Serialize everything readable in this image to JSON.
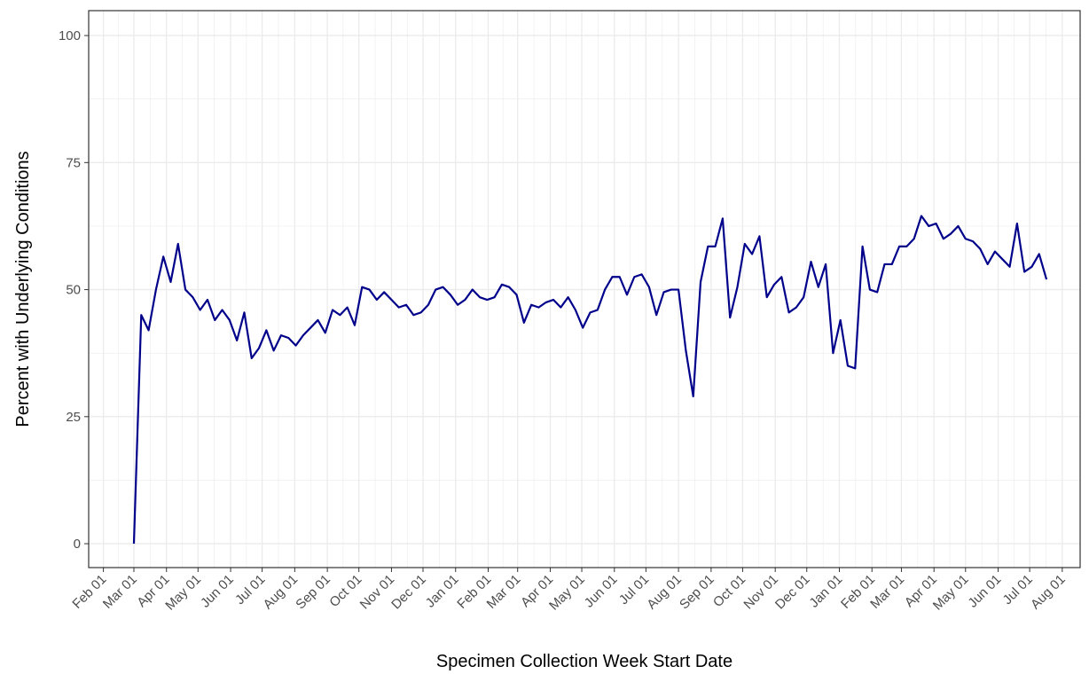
{
  "chart_data": {
    "type": "line",
    "x_label": "Specimen Collection Week Start Date",
    "y_label": "Percent with Underlying Conditions",
    "xlim": [
      -14,
      929
    ],
    "xticks": [
      {
        "value": 0,
        "label": "Feb 01"
      },
      {
        "value": 29,
        "label": "Mar 01"
      },
      {
        "value": 60,
        "label": "Apr 01"
      },
      {
        "value": 90,
        "label": "May 01"
      },
      {
        "value": 121,
        "label": "Jun 01"
      },
      {
        "value": 151,
        "label": "Jul 01"
      },
      {
        "value": 182,
        "label": "Aug 01"
      },
      {
        "value": 213,
        "label": "Sep 01"
      },
      {
        "value": 243,
        "label": "Oct 01"
      },
      {
        "value": 274,
        "label": "Nov 01"
      },
      {
        "value": 304,
        "label": "Dec 01"
      },
      {
        "value": 335,
        "label": "Jan 01"
      },
      {
        "value": 366,
        "label": "Feb 01"
      },
      {
        "value": 394,
        "label": "Mar 01"
      },
      {
        "value": 425,
        "label": "Apr 01"
      },
      {
        "value": 455,
        "label": "May 01"
      },
      {
        "value": 486,
        "label": "Jun 01"
      },
      {
        "value": 516,
        "label": "Jul 01"
      },
      {
        "value": 547,
        "label": "Aug 01"
      },
      {
        "value": 578,
        "label": "Sep 01"
      },
      {
        "value": 608,
        "label": "Oct 01"
      },
      {
        "value": 639,
        "label": "Nov 01"
      },
      {
        "value": 669,
        "label": "Dec 01"
      },
      {
        "value": 700,
        "label": "Jan 01"
      },
      {
        "value": 731,
        "label": "Feb 01"
      },
      {
        "value": 759,
        "label": "Mar 01"
      },
      {
        "value": 790,
        "label": "Apr 01"
      },
      {
        "value": 820,
        "label": "May 01"
      },
      {
        "value": 851,
        "label": "Jun 01"
      },
      {
        "value": 881,
        "label": "Jul 01"
      },
      {
        "value": 912,
        "label": "Aug 01"
      }
    ],
    "ylim": [
      -4.7,
      104.9
    ],
    "yticks": [
      0,
      25,
      50,
      75,
      100
    ],
    "grid": true,
    "x": [
      29,
      36,
      43,
      50,
      57,
      64,
      71,
      78,
      85,
      92,
      99,
      106,
      113,
      120,
      127,
      134,
      141,
      148,
      155,
      162,
      169,
      176,
      183,
      190,
      197,
      204,
      211,
      218,
      225,
      232,
      239,
      246,
      253,
      260,
      267,
      274,
      281,
      288,
      295,
      302,
      309,
      316,
      323,
      330,
      337,
      344,
      351,
      358,
      365,
      372,
      379,
      386,
      393,
      400,
      407,
      414,
      421,
      428,
      435,
      442,
      449,
      456,
      463,
      470,
      477,
      484,
      491,
      498,
      505,
      512,
      519,
      526,
      533,
      540,
      547,
      554,
      561,
      568,
      575,
      582,
      589,
      596,
      603,
      610,
      617,
      624,
      631,
      638,
      645,
      652,
      659,
      666,
      673,
      680,
      687,
      694,
      701,
      708,
      715,
      722,
      729,
      736,
      743,
      750,
      757,
      764,
      771,
      778,
      785,
      792,
      799,
      806,
      813,
      820,
      827,
      834,
      841,
      848,
      855,
      862,
      869,
      876,
      883,
      890,
      897
    ],
    "series": [
      {
        "color": "#00008b",
        "values": [
          0,
          45,
          42,
          50,
          56.5,
          51.5,
          59,
          50,
          48.5,
          46,
          48,
          44,
          46,
          44,
          40,
          45.5,
          36.5,
          38.5,
          42,
          38,
          41,
          40.5,
          39,
          41,
          42.5,
          44,
          41.5,
          46,
          45,
          46.5,
          43,
          50.5,
          50,
          48,
          49.5,
          48,
          46.5,
          47,
          45,
          45.5,
          47,
          50,
          50.5,
          49,
          47,
          48,
          50,
          48.5,
          48,
          48.5,
          51,
          50.5,
          49,
          43.5,
          47,
          46.5,
          47.5,
          48,
          46.5,
          48.5,
          46,
          42.5,
          45.5,
          46,
          50,
          52.5,
          52.5,
          49,
          52.5,
          53,
          50.5,
          45,
          49.5,
          50,
          50,
          38,
          29,
          51.5,
          58.5,
          58.5,
          64,
          44.5,
          50.5,
          59,
          57,
          60.5,
          48.5,
          51,
          52.5,
          45.5,
          46.5,
          48.5,
          55.5,
          50.5,
          55,
          37.5,
          44,
          35,
          34.5,
          58.5,
          50,
          49.5,
          55,
          55,
          58.5,
          58.5,
          60,
          64.5,
          62.5,
          63,
          60,
          61,
          62.5,
          60,
          59.5,
          58,
          55,
          57.5,
          56,
          54.5,
          63,
          53.5,
          54.5,
          57,
          52
        ]
      }
    ]
  }
}
